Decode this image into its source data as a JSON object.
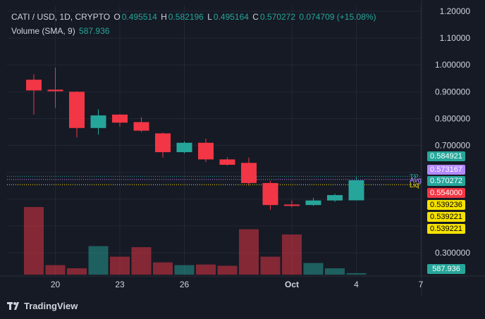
{
  "legend": {
    "symbol": "CATI / USD, 1D, CRYPTO",
    "o_label": "O",
    "o_value": "0.495514",
    "h_label": "H",
    "h_value": "0.582196",
    "l_label": "L",
    "l_value": "0.495164",
    "c_label": "C",
    "c_value": "0.570272",
    "change": "0.074709 (+15.08%)",
    "volume_label": "Volume (SMA, 9)",
    "volume_value": "587.936"
  },
  "price_axis": {
    "ticks": [
      {
        "label": "1.20000",
        "value": 1.2
      },
      {
        "label": "1.10000",
        "value": 1.1
      },
      {
        "label": "1.000000",
        "value": 1.0
      },
      {
        "label": "0.900000",
        "value": 0.9
      },
      {
        "label": "0.800000",
        "value": 0.8
      },
      {
        "label": "0.700000",
        "value": 0.7
      },
      {
        "label": "0.300000",
        "value": 0.3
      }
    ]
  },
  "date_axis": {
    "ticks": [
      {
        "label": "20",
        "index": 1,
        "bold": false
      },
      {
        "label": "23",
        "index": 4,
        "bold": false
      },
      {
        "label": "26",
        "index": 7,
        "bold": false
      },
      {
        "label": "Oct",
        "index": 12,
        "bold": true
      },
      {
        "label": "4",
        "index": 15,
        "bold": false
      },
      {
        "label": "7",
        "index": 18,
        "bold": false
      }
    ]
  },
  "overlay_lines": [
    {
      "label": "TP",
      "value": 0.584921,
      "color": "#26a69a"
    },
    {
      "label": "Avg",
      "value": 0.573167,
      "color": "#b388ff"
    },
    {
      "label": "Liq",
      "value": 0.554,
      "color": "#f5e100"
    }
  ],
  "price_tags": [
    {
      "text": "0.584921",
      "bg": "#26a69a",
      "fg": "#ffffff"
    },
    {
      "text": "0.573167",
      "bg": "#b388ff",
      "fg": "#ffffff"
    },
    {
      "text": "0.570272",
      "bg": "#26a69a",
      "fg": "#ffffff"
    },
    {
      "text": "0.554000",
      "bg": "#f23645",
      "fg": "#ffffff"
    },
    {
      "text": "0.539236",
      "bg": "#f5e100",
      "fg": "#000000"
    },
    {
      "text": "0.539221",
      "bg": "#f5e100",
      "fg": "#000000"
    },
    {
      "text": "0.539221",
      "bg": "#f5e100",
      "fg": "#000000"
    },
    {
      "text": "587.936",
      "bg": "#26a69a",
      "fg": "#ffffff"
    }
  ],
  "colors": {
    "up": "#26a69a",
    "down": "#f23645",
    "background": "#161a25",
    "grid": "#232734"
  },
  "brand": {
    "name": "TradingView",
    "icon": "tradingview-logo-icon"
  },
  "chart_data": {
    "type": "candlestick",
    "symbol": "CATI / USD",
    "interval": "1D",
    "candles": [
      {
        "x": "Sep 20",
        "o": 0.945,
        "h": 0.965,
        "l": 0.815,
        "c": 0.905
      },
      {
        "x": "Sep 21",
        "o": 0.908,
        "h": 0.99,
        "l": 0.84,
        "c": 0.902
      },
      {
        "x": "Sep 22",
        "o": 0.9,
        "h": 0.902,
        "l": 0.73,
        "c": 0.765
      },
      {
        "x": "Sep 23",
        "o": 0.765,
        "h": 0.835,
        "l": 0.74,
        "c": 0.812
      },
      {
        "x": "Sep 24",
        "o": 0.815,
        "h": 0.817,
        "l": 0.77,
        "c": 0.785
      },
      {
        "x": "Sep 25",
        "o": 0.787,
        "h": 0.805,
        "l": 0.75,
        "c": 0.755
      },
      {
        "x": "Sep 26",
        "o": 0.745,
        "h": 0.748,
        "l": 0.655,
        "c": 0.675
      },
      {
        "x": "Sep 27",
        "o": 0.675,
        "h": 0.715,
        "l": 0.67,
        "c": 0.71
      },
      {
        "x": "Sep 28",
        "o": 0.71,
        "h": 0.725,
        "l": 0.638,
        "c": 0.648
      },
      {
        "x": "Sep 29",
        "o": 0.648,
        "h": 0.656,
        "l": 0.625,
        "c": 0.628
      },
      {
        "x": "Sep 30",
        "o": 0.635,
        "h": 0.655,
        "l": 0.55,
        "c": 0.56
      },
      {
        "x": "Oct 1",
        "o": 0.56,
        "h": 0.568,
        "l": 0.46,
        "c": 0.478
      },
      {
        "x": "Oct 2",
        "o": 0.48,
        "h": 0.495,
        "l": 0.47,
        "c": 0.478
      },
      {
        "x": "Oct 3",
        "o": 0.478,
        "h": 0.505,
        "l": 0.475,
        "c": 0.495
      },
      {
        "x": "Oct 4",
        "o": 0.495,
        "h": 0.52,
        "l": 0.49,
        "c": 0.515
      },
      {
        "x": "Oct 5",
        "o": 0.495514,
        "h": 0.582196,
        "l": 0.495164,
        "c": 0.570272
      }
    ],
    "volume": [
      {
        "x": "Sep 20",
        "v": 3.2,
        "up": false
      },
      {
        "x": "Sep 21",
        "v": 0.45,
        "up": false
      },
      {
        "x": "Sep 22",
        "v": 0.3,
        "up": false
      },
      {
        "x": "Sep 23",
        "v": 1.35,
        "up": true
      },
      {
        "x": "Sep 24",
        "v": 0.85,
        "up": false
      },
      {
        "x": "Sep 25",
        "v": 1.3,
        "up": false
      },
      {
        "x": "Sep 26",
        "v": 0.58,
        "up": false
      },
      {
        "x": "Sep 27",
        "v": 0.45,
        "up": true
      },
      {
        "x": "Sep 28",
        "v": 0.48,
        "up": false
      },
      {
        "x": "Sep 29",
        "v": 0.42,
        "up": false
      },
      {
        "x": "Sep 30",
        "v": 2.15,
        "up": false
      },
      {
        "x": "Oct 1",
        "v": 0.85,
        "up": false
      },
      {
        "x": "Oct 2",
        "v": 1.9,
        "up": false
      },
      {
        "x": "Oct 3",
        "v": 0.55,
        "up": true
      },
      {
        "x": "Oct 4",
        "v": 0.3,
        "up": true
      },
      {
        "x": "Oct 5",
        "v": 0.07,
        "up": true
      }
    ],
    "y_axis_range": [
      0.25,
      1.215
    ]
  }
}
